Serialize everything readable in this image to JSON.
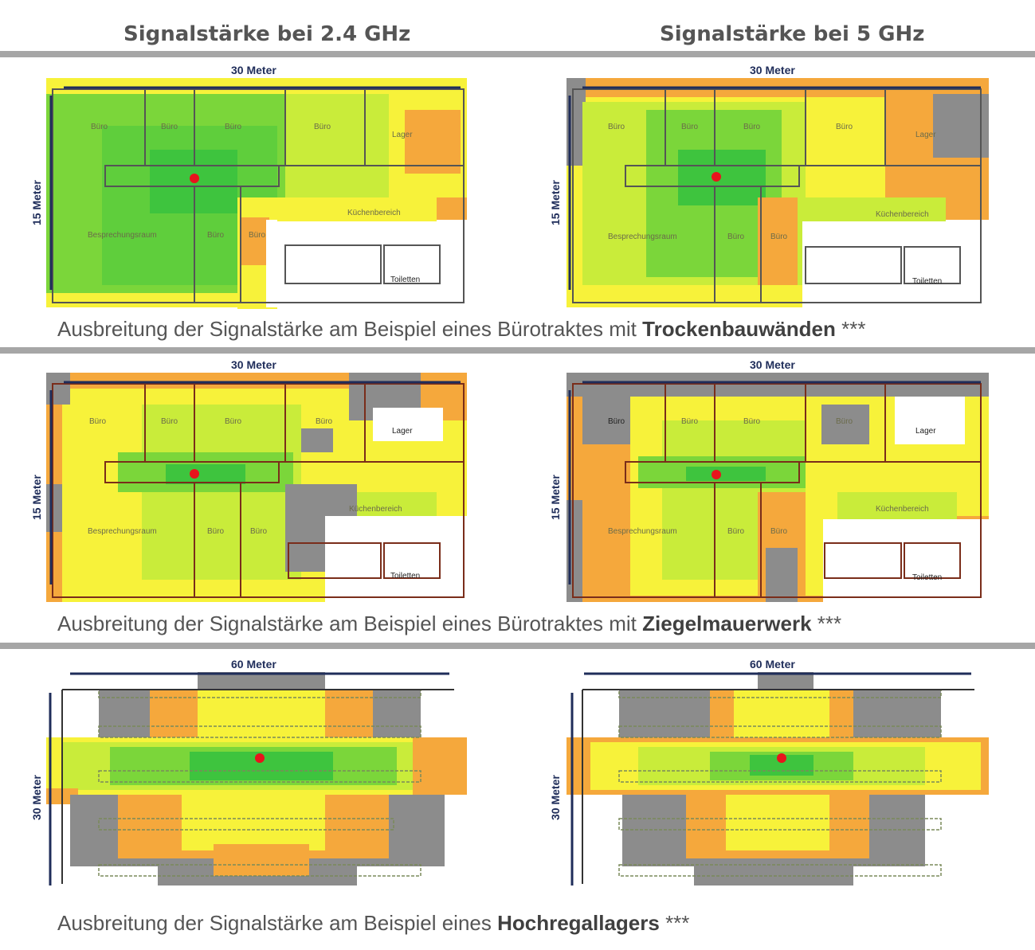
{
  "headers": {
    "left": "Signalstärke bei 2.4 GHz",
    "right": "Signalstärke bei 5 GHz"
  },
  "captions": [
    {
      "text": "Ausbreitung der Signalstärke am Beispiel eines Bürotraktes mit ",
      "bold": "Trockenbauwänden",
      "suffix": " ***"
    },
    {
      "text": "Ausbreitung der Signalstärke am Beispiel eines Bürotraktes mit ",
      "bold": "Ziegelmauerwerk",
      "suffix": " ***"
    },
    {
      "text": "Ausbreitung der Signalstärke am Beispiel eines ",
      "bold": "Hochregallagers",
      "suffix": " ***"
    }
  ],
  "dimensions": {
    "office_width": "30 Meter",
    "office_height": "15 Meter",
    "warehouse_width": "60 Meter",
    "warehouse_height": "30 Meter"
  },
  "rooms": {
    "buero": "Büro",
    "lager": "Lager",
    "kueche": "Küchenbereich",
    "besprechung": "Besprechungsraum",
    "toiletten": "Toiletten"
  },
  "colors": {
    "strong": "#3ec43e",
    "good": "#7bd63a",
    "medium": "#c9ec3a",
    "fair": "#f7f23a",
    "weak": "#f5a83c",
    "none": "#8c8c8c",
    "router": "#e8141c",
    "dimension": "#1f2d5a"
  }
}
